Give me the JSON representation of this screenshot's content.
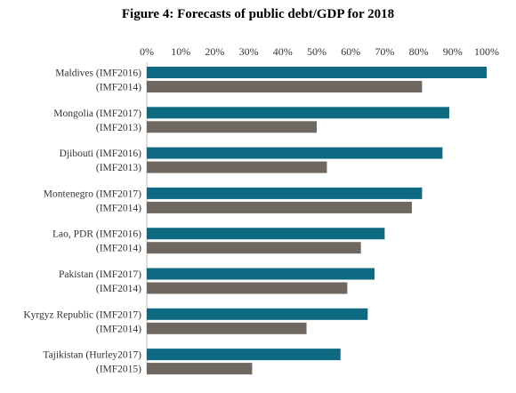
{
  "chart_data": {
    "type": "bar",
    "orientation": "horizontal",
    "title": "Figure 4: Forecasts of public debt/GDP for 2018",
    "xlim": [
      0,
      100
    ],
    "x_ticks": [
      "0%",
      "10%",
      "20%",
      "30%",
      "40%",
      "50%",
      "60%",
      "70%",
      "80%",
      "90%",
      "100%"
    ],
    "x_axis_position": "top",
    "grid": false,
    "colors": {
      "recent": "#0e6a82",
      "older": "#6e6861"
    },
    "groups": [
      {
        "bars": [
          {
            "label": "Maldives (IMF2016)",
            "value": 100,
            "kind": "recent"
          },
          {
            "label": "(IMF2014)",
            "value": 81,
            "kind": "older"
          }
        ]
      },
      {
        "bars": [
          {
            "label": "Mongolia (IMF2017)",
            "value": 89,
            "kind": "recent"
          },
          {
            "label": "(IMF2013)",
            "value": 50,
            "kind": "older"
          }
        ]
      },
      {
        "bars": [
          {
            "label": "Djibouti (IMF2016)",
            "value": 87,
            "kind": "recent"
          },
          {
            "label": "(IMF2013)",
            "value": 53,
            "kind": "older"
          }
        ]
      },
      {
        "bars": [
          {
            "label": "Montenegro (IMF2017)",
            "value": 81,
            "kind": "recent"
          },
          {
            "label": "(IMF2014)",
            "value": 78,
            "kind": "older"
          }
        ]
      },
      {
        "bars": [
          {
            "label": "Lao, PDR (IMF2016)",
            "value": 70,
            "kind": "recent"
          },
          {
            "label": "(IMF2014)",
            "value": 63,
            "kind": "older"
          }
        ]
      },
      {
        "bars": [
          {
            "label": "Pakistan (IMF2017)",
            "value": 67,
            "kind": "recent"
          },
          {
            "label": "(IMF2014)",
            "value": 59,
            "kind": "older"
          }
        ]
      },
      {
        "bars": [
          {
            "label": "Kyrgyz Republic (IMF2017)",
            "value": 65,
            "kind": "recent"
          },
          {
            "label": "(IMF2014)",
            "value": 47,
            "kind": "older"
          }
        ]
      },
      {
        "bars": [
          {
            "label": "Tajikistan (Hurley2017)",
            "value": 57,
            "kind": "recent"
          },
          {
            "label": "(IMF2015)",
            "value": 31,
            "kind": "older"
          }
        ]
      }
    ]
  }
}
